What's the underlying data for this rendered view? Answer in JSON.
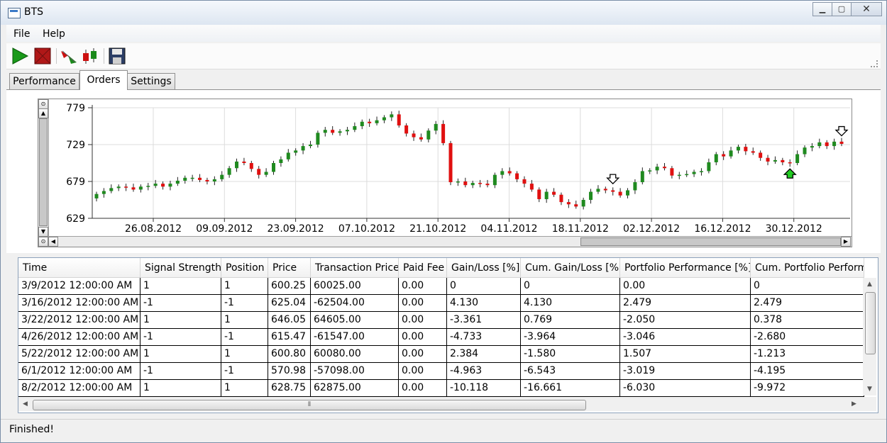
{
  "window": {
    "title": "BTS",
    "buttons": {
      "minimize": "▁",
      "maximize": "▢",
      "close": "✕"
    }
  },
  "menu": [
    "File",
    "Help"
  ],
  "toolbar": [
    "play-icon",
    "stop-icon",
    "indicator-icon",
    "candlestick-icon",
    "save-icon"
  ],
  "tabs": [
    {
      "label": "Performance",
      "active": false
    },
    {
      "label": "Orders",
      "active": true
    },
    {
      "label": "Settings",
      "active": false
    }
  ],
  "chart_data": {
    "type": "candlestick",
    "ylim": [
      629,
      779
    ],
    "y_ticks": [
      "779",
      "729",
      "679",
      "629"
    ],
    "x_ticks": [
      "26.08.2012",
      "09.09.2012",
      "23.09.2012",
      "07.10.2012",
      "21.10.2012",
      "04.11.2012",
      "18.11.2012",
      "02.12.2012",
      "16.12.2012",
      "30.12.2012"
    ],
    "grid": true,
    "up_color": "#1f8a1f",
    "down_color": "#e01010",
    "closes": [
      662,
      666,
      670,
      672,
      671,
      668,
      672,
      673,
      676,
      672,
      676,
      680,
      684,
      684,
      681,
      679,
      682,
      688,
      697,
      706,
      704,
      696,
      688,
      692,
      704,
      709,
      718,
      721,
      727,
      729,
      745,
      749,
      745,
      747,
      749,
      754,
      760,
      758,
      762,
      766,
      770,
      755,
      744,
      739,
      736,
      748,
      757,
      731,
      678,
      679,
      674,
      677,
      676,
      674,
      688,
      693,
      690,
      682,
      676,
      668,
      655,
      665,
      661,
      651,
      648,
      645,
      654,
      665,
      669,
      667,
      665,
      660,
      667,
      678,
      693,
      694,
      699,
      697,
      687,
      688,
      689,
      692,
      693,
      705,
      716,
      713,
      721,
      726,
      720,
      718,
      711,
      706,
      708,
      705,
      704,
      716,
      725,
      727,
      732,
      727,
      733,
      730
    ],
    "markers": [
      {
        "type": "sell",
        "index": 70
      },
      {
        "type": "buy",
        "index": 94
      },
      {
        "type": "sell",
        "index": 101
      }
    ]
  },
  "grid": {
    "columns": [
      "Time",
      "Signal Strength",
      "Position",
      "Price",
      "Transaction Price",
      "Paid Fee",
      "Gain/Loss [%]",
      "Cum. Gain/Loss [%]",
      "Portfolio Performance [%]",
      "Cum. Portfolio Perform"
    ],
    "rows": [
      [
        "3/9/2012 12:00:00 AM",
        "1",
        "1",
        "600.25",
        "60025.00",
        "0.00",
        "0",
        "0",
        "0.00",
        "0"
      ],
      [
        "3/16/2012 12:00:00 AM",
        "-1",
        "-1",
        "625.04",
        "-62504.00",
        "0.00",
        "4.130",
        "4.130",
        "2.479",
        "2.479"
      ],
      [
        "3/22/2012 12:00:00 AM",
        "1",
        "1",
        "646.05",
        "64605.00",
        "0.00",
        "-3.361",
        "0.769",
        "-2.050",
        "0.378"
      ],
      [
        "4/26/2012 12:00:00 AM",
        "-1",
        "-1",
        "615.47",
        "-61547.00",
        "0.00",
        "-4.733",
        "-3.964",
        "-3.046",
        "-2.680"
      ],
      [
        "5/22/2012 12:00:00 AM",
        "1",
        "1",
        "600.80",
        "60080.00",
        "0.00",
        "2.384",
        "-1.580",
        "1.507",
        "-1.213"
      ],
      [
        "6/1/2012 12:00:00 AM",
        "-1",
        "-1",
        "570.98",
        "-57098.00",
        "0.00",
        "-4.963",
        "-6.543",
        "-3.019",
        "-4.195"
      ],
      [
        "8/2/2012 12:00:00 AM",
        "1",
        "1",
        "628.75",
        "62875.00",
        "0.00",
        "-10.118",
        "-16.661",
        "-6.030",
        "-9.972"
      ]
    ]
  },
  "status": "Finished!"
}
